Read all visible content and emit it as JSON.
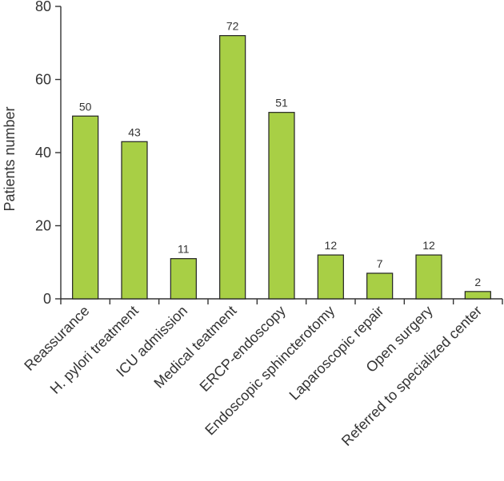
{
  "chart_data": {
    "type": "bar",
    "categories": [
      "Reassurance",
      "H. pylori treatment",
      "ICU admission",
      "Medical teatment",
      "ERCP-endoscopy",
      "Endoscopic sphincterotomy",
      "Laparoscopic repair",
      "Open surgery",
      "Referred to specialized center"
    ],
    "values": [
      50,
      43,
      11,
      72,
      51,
      12,
      7,
      12,
      2
    ],
    "data_labels": [
      "50",
      "43",
      "11",
      "72",
      "51",
      "12",
      "7",
      "12",
      "2"
    ],
    "ylabel": "Patients number",
    "xlabel": "",
    "ylim": [
      0,
      80
    ],
    "yticks": [
      "0",
      "20",
      "40",
      "60",
      "80"
    ],
    "bar_color": "#a8cf45",
    "grid": false,
    "legend": "none"
  }
}
